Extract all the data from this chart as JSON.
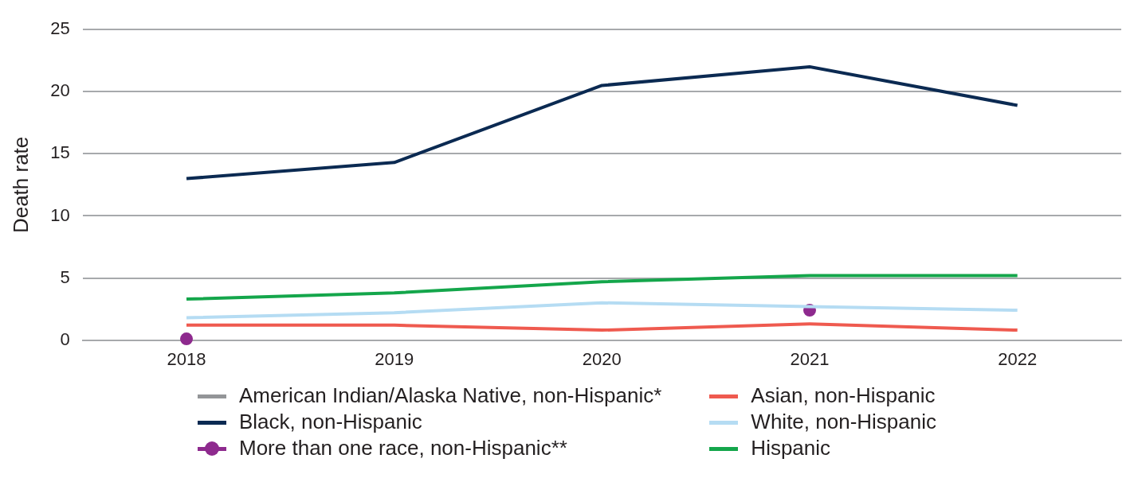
{
  "chart_data": {
    "type": "line",
    "ylabel": "Death rate",
    "categories": [
      "2018",
      "2019",
      "2020",
      "2021",
      "2022"
    ],
    "ylim": [
      0,
      25
    ],
    "yticks": [
      0,
      5,
      10,
      15,
      20,
      25
    ],
    "grid": "y",
    "legend": "bottom",
    "marker": "none",
    "series": [
      {
        "name": "American Indian/Alaska Native, non-Hispanic*",
        "color": "#939598",
        "values": [
          null,
          null,
          null,
          null,
          null
        ]
      },
      {
        "name": "Asian, non-Hispanic",
        "color": "#ef5a4f",
        "values": [
          1.2,
          1.2,
          0.8,
          1.3,
          0.8
        ]
      },
      {
        "name": "Black, non-Hispanic",
        "color": "#0b2a52",
        "values": [
          13.0,
          14.3,
          20.5,
          22.0,
          18.9
        ]
      },
      {
        "name": "White, non-Hispanic",
        "color": "#b5dcf3",
        "values": [
          1.8,
          2.2,
          3.0,
          2.7,
          2.4
        ]
      },
      {
        "name": "More than one race, non-Hispanic**",
        "color": "#8e2a8e",
        "type": "scatter",
        "marker": "circle",
        "values": [
          0.1,
          null,
          null,
          2.4,
          null
        ]
      },
      {
        "name": "Hispanic",
        "color": "#14a64b",
        "values": [
          3.3,
          3.8,
          4.7,
          5.2,
          5.2
        ]
      }
    ]
  }
}
